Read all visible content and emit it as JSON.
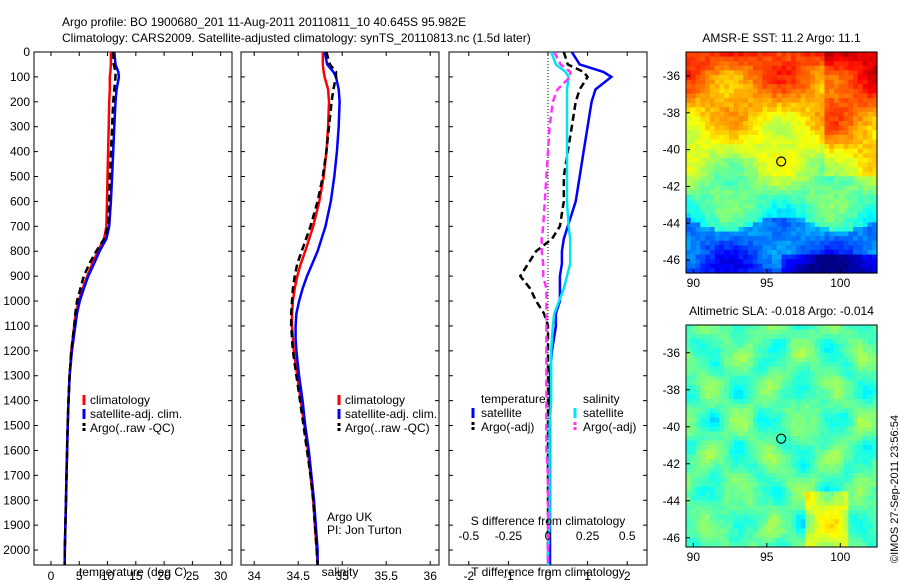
{
  "header": {
    "line1": "Argo profile: BO 1900680_201 11-Aug-2011 20110811_10 40.645S 95.982E",
    "line2": "Climatology: CARS2009. Satellite-adjusted climatology: synTS_20110813.nc (1.5d later)"
  },
  "credit": "©IMOS 27-Sep-2011 23:56:54",
  "chart_data": [
    {
      "type": "line",
      "xlabel": "temperature (deg C)",
      "ylabel": "",
      "xlim": [
        -3,
        32
      ],
      "ylim": [
        2060,
        0
      ],
      "x_ticks": [
        0,
        5,
        10,
        15,
        20,
        25,
        30
      ],
      "y_ticks": [
        0,
        100,
        200,
        300,
        400,
        500,
        600,
        700,
        800,
        900,
        1000,
        1100,
        1200,
        1300,
        1400,
        1500,
        1600,
        1700,
        1800,
        1900,
        2000
      ],
      "depth": [
        0,
        50,
        80,
        100,
        150,
        200,
        300,
        400,
        500,
        600,
        700,
        750,
        800,
        850,
        900,
        950,
        1000,
        1050,
        1100,
        1200,
        1300,
        1400,
        1500,
        1600,
        1700,
        1800,
        1900,
        2000,
        2060
      ],
      "series": [
        {
          "name": "climatology",
          "color": "#ff0000",
          "style": "solid",
          "values": [
            10.6,
            10.6,
            10.5,
            10.4,
            10.4,
            10.3,
            10.2,
            10.1,
            10.0,
            9.9,
            9.8,
            9.4,
            8.3,
            7.3,
            6.4,
            5.6,
            4.9,
            4.4,
            4.1,
            3.6,
            3.3,
            3.1,
            2.95,
            2.85,
            2.75,
            2.65,
            2.55,
            2.45,
            2.42
          ]
        },
        {
          "name": "satellite-adj. clim.",
          "color": "#0000ff",
          "style": "solid",
          "values": [
            11.2,
            11.4,
            11.9,
            12.0,
            11.6,
            11.4,
            11.2,
            11.0,
            10.8,
            10.6,
            10.3,
            9.8,
            8.6,
            7.6,
            6.6,
            5.8,
            5.1,
            4.6,
            4.3,
            3.7,
            3.3,
            3.1,
            2.95,
            2.85,
            2.75,
            2.65,
            2.55,
            2.45,
            2.42
          ]
        },
        {
          "name": "Argo(..raw -QC)",
          "color": "#000000",
          "style": "dash",
          "values": [
            11.0,
            11.1,
            11.4,
            11.4,
            11.2,
            11.0,
            10.8,
            10.6,
            10.4,
            10.3,
            10.1,
            9.4,
            8.0,
            6.8,
            5.8,
            5.2,
            4.6,
            4.3,
            4.1,
            3.6,
            3.3,
            3.1,
            2.95,
            2.85,
            2.75,
            2.65,
            2.55,
            2.45,
            2.42
          ]
        }
      ],
      "legend_position": "lower-center"
    },
    {
      "type": "line",
      "xlabel": "salinity",
      "ylabel": "",
      "xlim": [
        33.85,
        36.1
      ],
      "ylim": [
        2060,
        0
      ],
      "x_ticks": [
        34,
        34.5,
        35,
        35.5,
        36
      ],
      "depth": [
        0,
        50,
        80,
        100,
        150,
        200,
        300,
        400,
        500,
        600,
        700,
        800,
        850,
        900,
        950,
        1000,
        1050,
        1100,
        1150,
        1200,
        1300,
        1400,
        1500,
        1600,
        1700,
        1800,
        1900,
        2000,
        2060
      ],
      "series": [
        {
          "name": "climatology",
          "color": "#ff0000",
          "style": "solid",
          "values": [
            34.78,
            34.78,
            34.79,
            34.8,
            34.84,
            34.85,
            34.84,
            34.82,
            34.79,
            34.74,
            34.67,
            34.58,
            34.53,
            34.49,
            34.46,
            34.44,
            34.43,
            34.43,
            34.44,
            34.45,
            34.49,
            34.53,
            34.57,
            34.61,
            34.64,
            34.67,
            34.69,
            34.71,
            34.72
          ]
        },
        {
          "name": "satellite-adj. clim.",
          "color": "#0000ff",
          "style": "solid",
          "values": [
            34.8,
            34.83,
            34.9,
            34.93,
            34.96,
            34.97,
            34.96,
            34.94,
            34.91,
            34.87,
            34.81,
            34.72,
            34.66,
            34.6,
            34.55,
            34.51,
            34.48,
            34.47,
            34.47,
            34.48,
            34.51,
            34.55,
            34.58,
            34.62,
            34.65,
            34.68,
            34.7,
            34.72,
            34.72
          ]
        },
        {
          "name": "Argo(..raw -QC)",
          "color": "#000000",
          "style": "dash",
          "values": [
            34.82,
            34.86,
            34.93,
            34.93,
            34.9,
            34.88,
            34.85,
            34.82,
            34.78,
            34.72,
            34.64,
            34.54,
            34.49,
            34.46,
            34.44,
            34.43,
            34.42,
            34.42,
            34.43,
            34.44,
            34.48,
            34.52,
            34.56,
            34.6,
            34.64,
            34.67,
            34.69,
            34.71,
            34.72
          ]
        }
      ],
      "legend_position": "lower-center",
      "annotation": {
        "line1": "Argo UK",
        "line2": "PI: Jon Turton"
      }
    },
    {
      "type": "line",
      "xlabel": "T difference from climatology",
      "x2label": "S difference from climatology",
      "xlim": [
        -2.5,
        2.5
      ],
      "x2lim": [
        -0.625,
        0.625
      ],
      "ylim": [
        2060,
        0
      ],
      "x_ticks": [
        -2,
        -1,
        0,
        1,
        2
      ],
      "x2_ticks": [
        -0.5,
        -0.25,
        0,
        0.25,
        0.5
      ],
      "x2_tick_labels": [
        "-0.5",
        "-0.25",
        "0",
        "0.25",
        "0.5"
      ],
      "depth": [
        0,
        50,
        80,
        100,
        150,
        200,
        300,
        400,
        500,
        600,
        700,
        750,
        800,
        850,
        900,
        950,
        1000,
        1050,
        1100,
        1200,
        1300,
        1400,
        1500,
        1600,
        1700,
        1800,
        1900,
        2000,
        2060
      ],
      "series": [
        {
          "name": "temperature satellite",
          "color": "#0000ff",
          "style": "solid",
          "axis": "T",
          "values": [
            0.6,
            0.8,
            1.4,
            1.6,
            1.2,
            1.1,
            1.0,
            0.9,
            0.8,
            0.7,
            0.5,
            0.4,
            0.35,
            0.35,
            0.3,
            0.3,
            0.3,
            0.2,
            0.2,
            0.1,
            0.05,
            0.05,
            0.05,
            0.05,
            0.05,
            0.05,
            0.05,
            0.05,
            0.05
          ]
        },
        {
          "name": "temperature Argo(-adj)",
          "color": "#000000",
          "style": "dash",
          "axis": "T",
          "values": [
            0.4,
            0.5,
            0.9,
            1.0,
            0.8,
            0.7,
            0.6,
            0.5,
            0.4,
            0.4,
            0.3,
            0.1,
            -0.3,
            -0.5,
            -0.7,
            -0.45,
            -0.3,
            -0.1,
            0.0,
            0.0,
            0.0,
            0.0,
            0.0,
            0.0,
            0.0,
            0.0,
            0.0,
            0.0,
            0.0
          ]
        },
        {
          "name": "salinity satellite",
          "color": "#00e5ee",
          "style": "solid",
          "axis": "S",
          "values": [
            0.02,
            0.05,
            0.11,
            0.13,
            0.12,
            0.12,
            0.12,
            0.12,
            0.12,
            0.12,
            0.13,
            0.14,
            0.14,
            0.14,
            0.12,
            0.1,
            0.07,
            0.04,
            0.03,
            0.02,
            0.02,
            0.02,
            0.01,
            0.01,
            0.01,
            0.01,
            0.01,
            0.0,
            0.0
          ]
        },
        {
          "name": "salinity Argo(-adj)",
          "color": "#ff33ff",
          "style": "dash",
          "axis": "S",
          "values": [
            0.04,
            0.08,
            0.14,
            0.14,
            0.06,
            0.03,
            0.01,
            0.0,
            -0.01,
            -0.02,
            -0.03,
            -0.04,
            -0.04,
            -0.03,
            -0.03,
            -0.01,
            -0.01,
            -0.01,
            -0.01,
            -0.01,
            -0.01,
            -0.01,
            -0.01,
            -0.01,
            0.0,
            0.0,
            0.0,
            0.0,
            0.0
          ]
        }
      ],
      "legend": {
        "temperature_title": "temperature",
        "salinity_title": "salinity",
        "entry1": "satellite",
        "entry2": "Argo(-adj)"
      }
    },
    {
      "type": "heatmap",
      "title": "AMSR-E SST: 11.2 Argo: 11.1",
      "x_ticks": [
        90,
        95,
        100
      ],
      "y_ticks": [
        -36,
        -38,
        -40,
        -42,
        -44,
        -46
      ],
      "xlim": [
        89.5,
        102.5
      ],
      "ylim": [
        -46.7,
        -34.7
      ],
      "marker": {
        "lon": 95.98,
        "lat": -40.645
      },
      "colormap": "jet"
    },
    {
      "type": "heatmap",
      "title": "Altimetric SLA: -0.018 Argo: -0.014",
      "x_ticks": [
        90,
        95,
        100
      ],
      "y_ticks": [
        -36,
        -38,
        -40,
        -42,
        -44,
        -46
      ],
      "xlim": [
        89.5,
        102.5
      ],
      "ylim": [
        -46.5,
        -34.5
      ],
      "marker": {
        "lon": 95.98,
        "lat": -40.645
      },
      "colormap": "jet"
    }
  ]
}
